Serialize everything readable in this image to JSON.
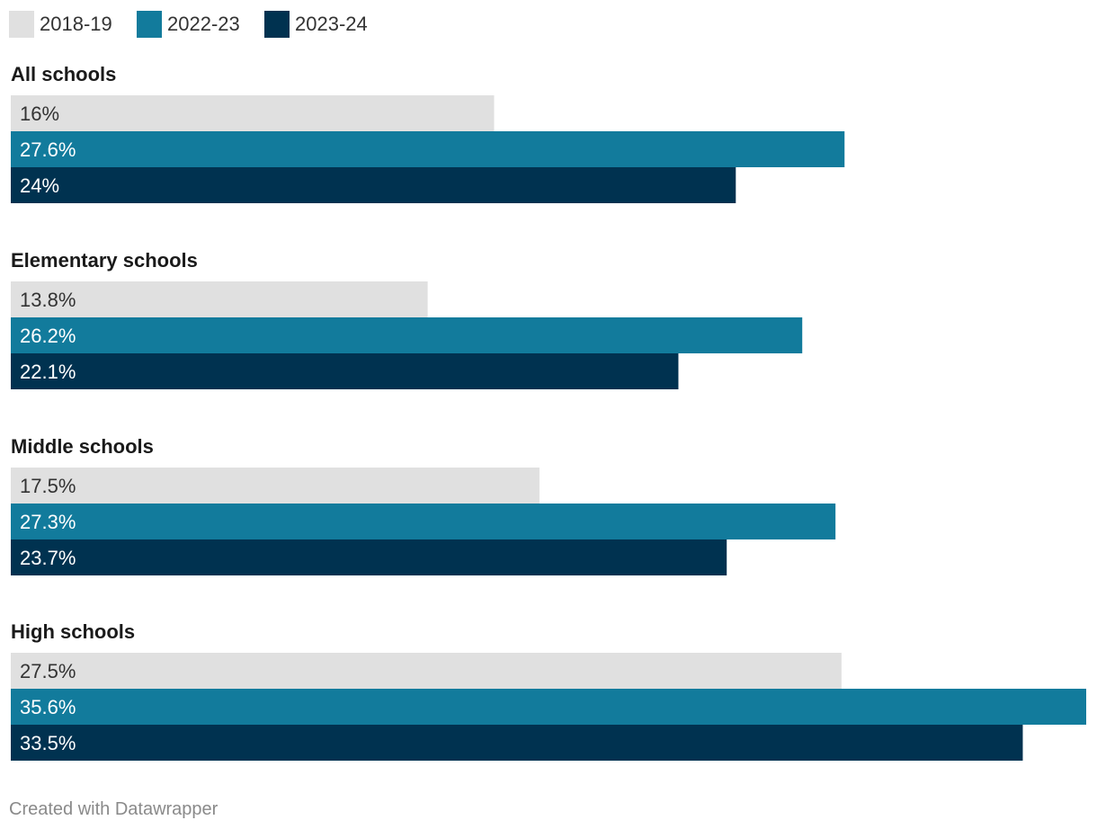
{
  "chart_data": {
    "type": "bar",
    "orientation": "horizontal",
    "categories": [
      "All schools",
      "Elementary schools",
      "Middle schools",
      "High schools"
    ],
    "series": [
      {
        "name": "2018-19",
        "color": "#e0e0e0",
        "label_color": "#333333",
        "values": [
          16,
          13.8,
          17.5,
          27.5
        ]
      },
      {
        "name": "2022-23",
        "color": "#127b9c",
        "label_color": "#ffffff",
        "values": [
          27.6,
          26.2,
          27.3,
          35.6
        ]
      },
      {
        "name": "2023-24",
        "color": "#003250",
        "label_color": "#ffffff",
        "values": [
          24,
          22.1,
          23.7,
          33.5
        ]
      }
    ],
    "value_labels": [
      [
        "16%",
        "13.8%",
        "17.5%",
        "27.5%"
      ],
      [
        "27.6%",
        "26.2%",
        "27.3%",
        "35.6%"
      ],
      [
        "24%",
        "22.1%",
        "23.7%",
        "33.5%"
      ]
    ],
    "xlim": [
      0,
      35.6
    ],
    "legend_position": "top-left",
    "grid": false,
    "title": "",
    "xlabel": "",
    "ylabel": ""
  },
  "footer": {
    "credit": "Created with Datawrapper"
  }
}
